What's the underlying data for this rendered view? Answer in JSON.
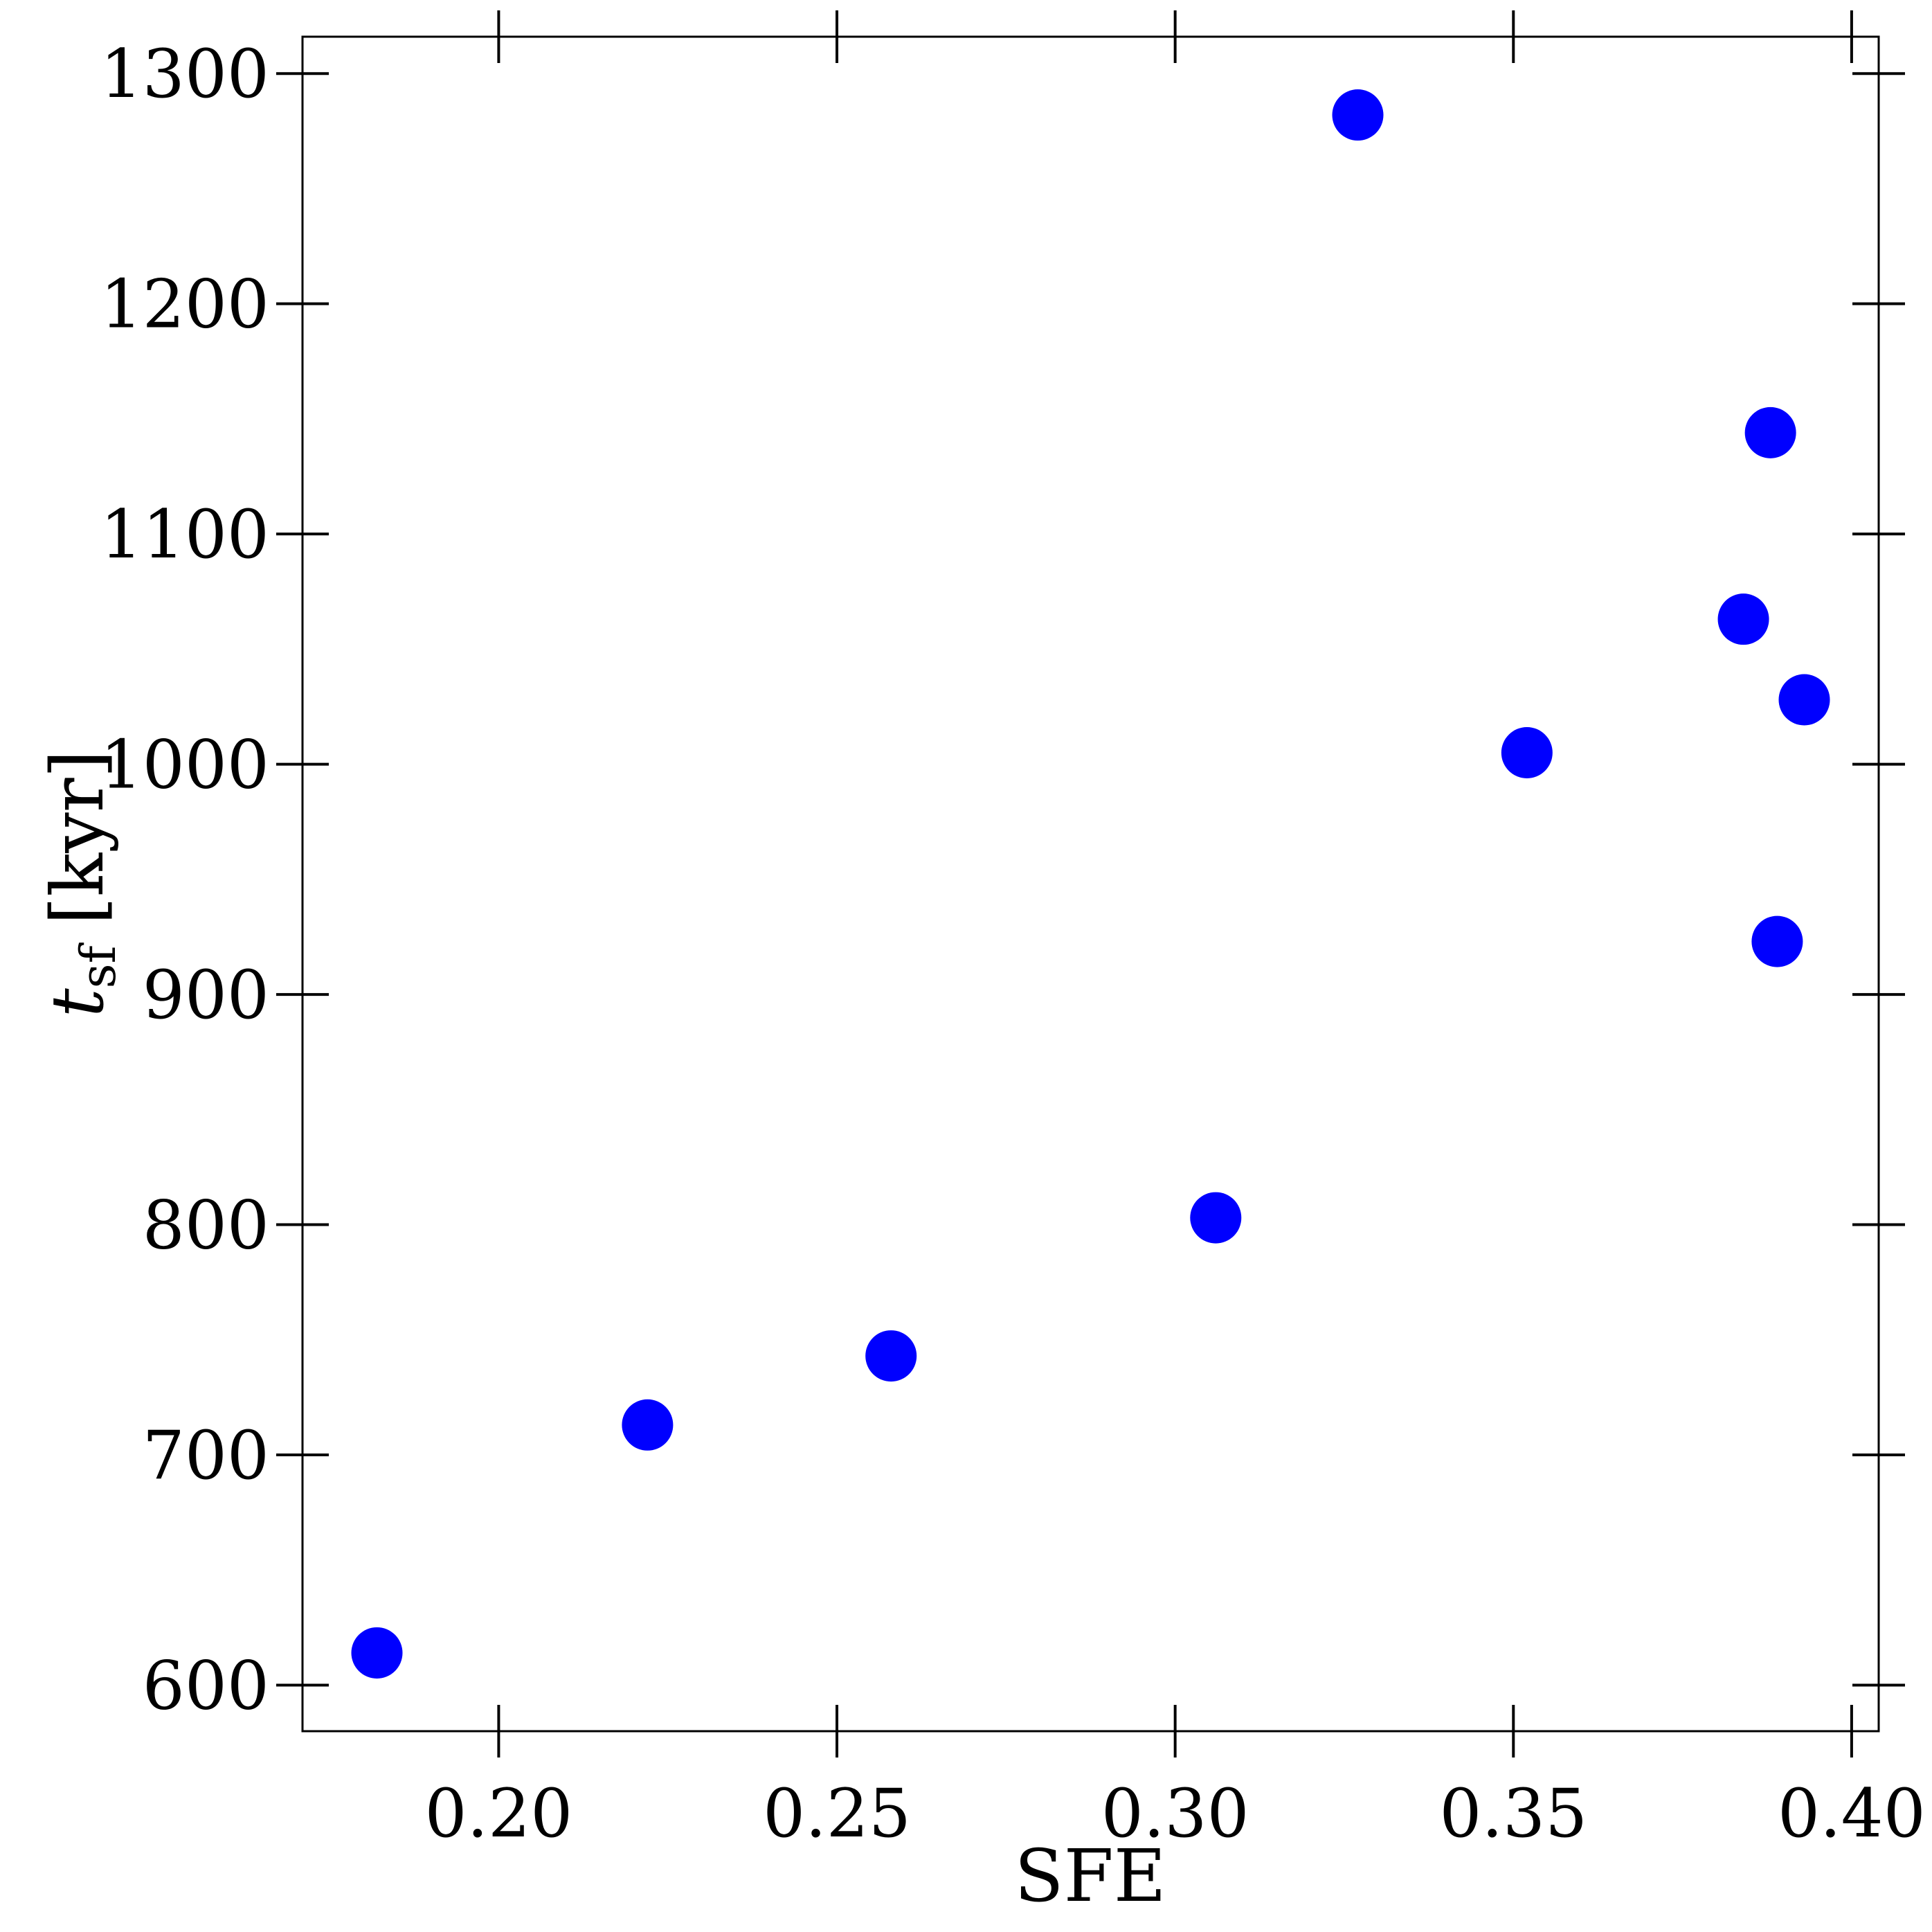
{
  "chart_data": {
    "type": "scatter",
    "title": "",
    "xlabel": "SFE",
    "ylabel": "t_sf [kyr]",
    "ylabel_parts": {
      "symbol": "t",
      "subscript": "sf",
      "unit": "[kyr]"
    },
    "xlim": [
      0.171,
      0.404
    ],
    "ylim": [
      580,
      1316
    ],
    "xticks": [
      0.2,
      0.25,
      0.3,
      0.35,
      0.4
    ],
    "xtick_labels": [
      "0.20",
      "0.25",
      "0.30",
      "0.35",
      "0.40"
    ],
    "yticks": [
      600,
      700,
      800,
      900,
      1000,
      1100,
      1200,
      1300
    ],
    "ytick_labels": [
      "600",
      "700",
      "800",
      "900",
      "1000",
      "1100",
      "1200",
      "1300"
    ],
    "grid": false,
    "legend": "none",
    "marker_color": "#0000ff",
    "series": [
      {
        "points": [
          {
            "x": 0.182,
            "y": 614
          },
          {
            "x": 0.222,
            "y": 713
          },
          {
            "x": 0.258,
            "y": 743
          },
          {
            "x": 0.306,
            "y": 803
          },
          {
            "x": 0.327,
            "y": 1282
          },
          {
            "x": 0.352,
            "y": 1005
          },
          {
            "x": 0.384,
            "y": 1063
          },
          {
            "x": 0.388,
            "y": 1144
          },
          {
            "x": 0.389,
            "y": 923
          },
          {
            "x": 0.393,
            "y": 1028
          }
        ]
      }
    ]
  }
}
